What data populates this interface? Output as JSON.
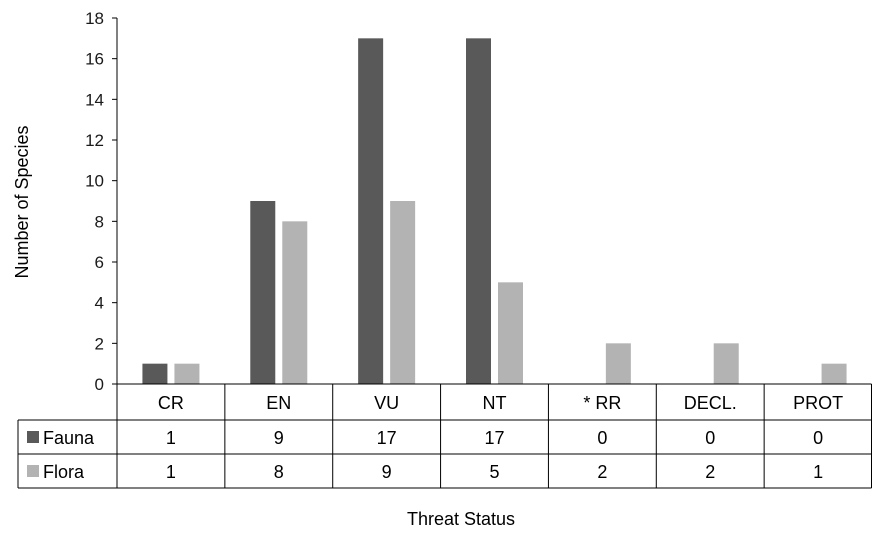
{
  "chart_data": {
    "type": "bar",
    "title": "",
    "xlabel": "Threat Status",
    "ylabel": "Number of Species",
    "ylim": [
      0,
      18
    ],
    "yticks": [
      0,
      2,
      4,
      6,
      8,
      10,
      12,
      14,
      16,
      18
    ],
    "categories": [
      "CR",
      "EN",
      "VU",
      "NT",
      "* RR",
      "DECL.",
      "PROT"
    ],
    "series": [
      {
        "name": "Fauna",
        "color": "#595959",
        "values": [
          1,
          9,
          17,
          17,
          0,
          0,
          0
        ]
      },
      {
        "name": "Flora",
        "color": "#b3b3b3",
        "values": [
          1,
          8,
          9,
          5,
          2,
          2,
          1
        ]
      }
    ],
    "grid": false,
    "legend": "data-table",
    "data_table": true
  }
}
